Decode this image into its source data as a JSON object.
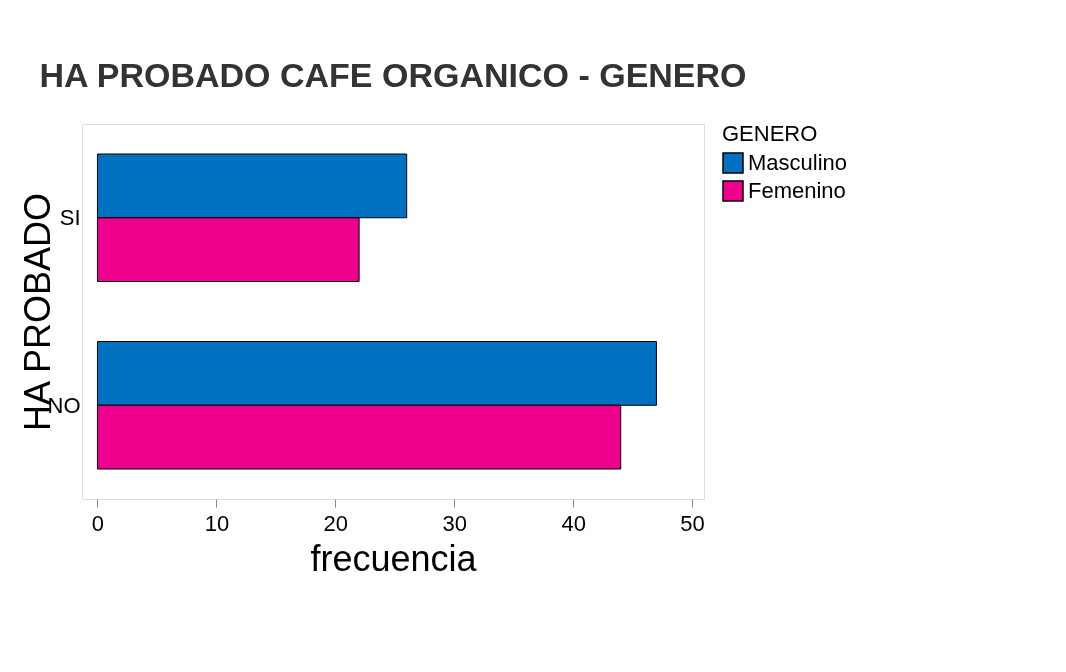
{
  "chart_data": {
    "type": "bar",
    "orientation": "horizontal",
    "title": "HA PROBADO CAFE ORGANICO - GENERO",
    "xlabel": "frecuencia",
    "ylabel": "HA PROBADO",
    "legend_title": "GENERO",
    "legend": "right",
    "grid": false,
    "categories": [
      "SI",
      "NO"
    ],
    "series": [
      {
        "name": "Masculino",
        "color": "#0070c0",
        "values": [
          26,
          47
        ]
      },
      {
        "name": "Femenino",
        "color": "#ec008c",
        "values": [
          22,
          44
        ]
      }
    ],
    "xlim": [
      -1.3,
      51
    ],
    "xticks": [
      0,
      10,
      20,
      30,
      40,
      50
    ]
  }
}
